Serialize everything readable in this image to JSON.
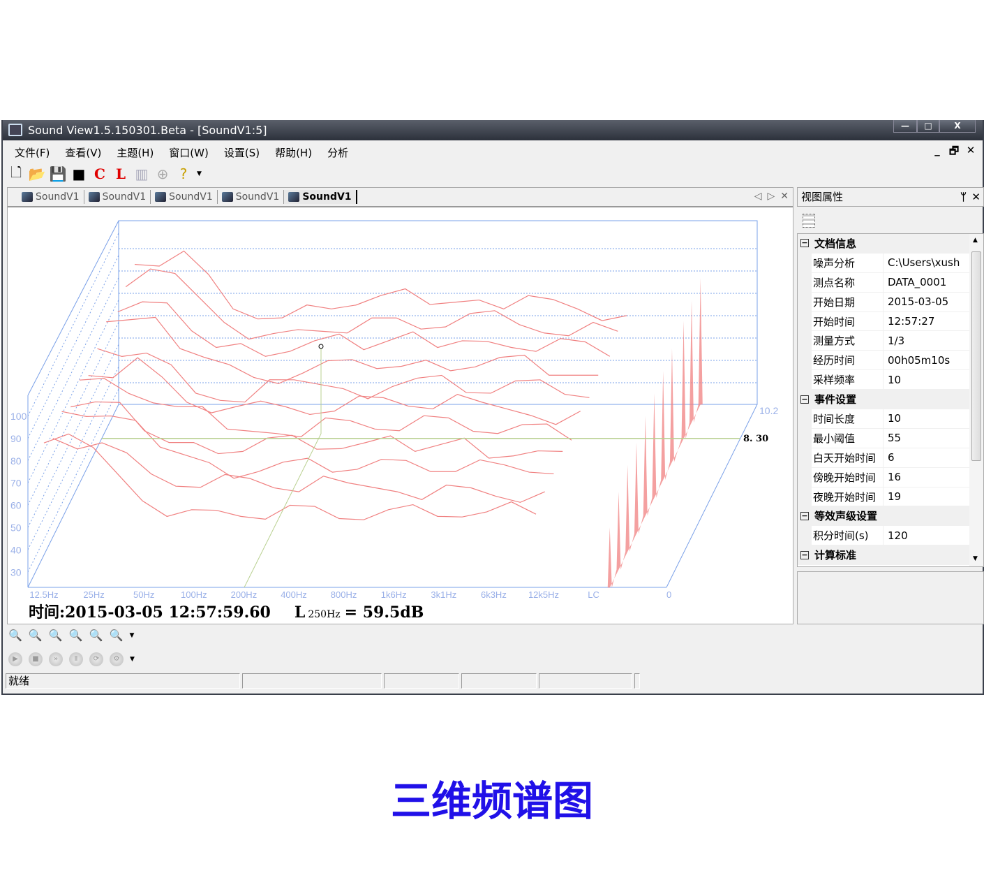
{
  "window": {
    "title": "Sound View1.5.150301.Beta - [SoundV1:5]",
    "min": "—",
    "max": "□",
    "close": "X"
  },
  "menu": [
    "文件(F)",
    "查看(V)",
    "主题(H)",
    "窗口(W)",
    "设置(S)",
    "帮助(H)",
    "分析"
  ],
  "mdi_controls": {
    "min": "_",
    "restore": "🗗",
    "close": "✕"
  },
  "toolbar": [
    {
      "icon": "new-file-icon",
      "glyph": "🗋"
    },
    {
      "icon": "open-folder-icon",
      "glyph": "📂"
    },
    {
      "icon": "save-icon",
      "glyph": "💾"
    },
    {
      "icon": "black-square-icon",
      "glyph": "■"
    },
    {
      "icon": "c-weighting-icon",
      "glyph": "C"
    },
    {
      "icon": "l-weighting-icon",
      "glyph": "L"
    },
    {
      "icon": "chart-icon",
      "glyph": "▥"
    },
    {
      "icon": "add-circle-icon",
      "glyph": "⊕"
    },
    {
      "icon": "help-icon",
      "glyph": "?"
    }
  ],
  "tabs": [
    "SoundV1",
    "SoundV1",
    "SoundV1",
    "SoundV1",
    "SoundV1"
  ],
  "active_tab": 4,
  "tab_nav": {
    "prev": "◁",
    "next": "▷",
    "close": "✕"
  },
  "properties": {
    "title": "视图属性",
    "pin": "ᛘ",
    "close": "✕",
    "sections": [
      {
        "name": "文档信息",
        "rows": [
          [
            "噪声分析",
            "C:\\Users\\xush"
          ],
          [
            "测点名称",
            "DATA_0001"
          ],
          [
            "开始日期",
            "2015-03-05"
          ],
          [
            "开始时间",
            "12:57:27"
          ],
          [
            "测量方式",
            "1/3"
          ],
          [
            "经历时间",
            "00h05m10s"
          ],
          [
            "采样频率",
            "10"
          ]
        ]
      },
      {
        "name": "事件设置",
        "rows": [
          [
            "时间长度",
            "10"
          ],
          [
            "最小阈值",
            "55"
          ],
          [
            "白天开始时间",
            "6"
          ],
          [
            "傍晚开始时间",
            "16"
          ],
          [
            "夜晚开始时间",
            "19"
          ]
        ]
      },
      {
        "name": "等效声级设置",
        "rows": [
          [
            "积分时间(s)",
            "120"
          ]
        ]
      },
      {
        "name": "计算标准",
        "rows": []
      }
    ]
  },
  "readout": {
    "time": "时间:2015-03-05 12:57:59.60",
    "level_prefix": "L",
    "level_sub": "250Hz",
    "level_value": "= 59.5dB"
  },
  "status": {
    "text": "就绪"
  },
  "caption": "三维频谱图",
  "chart_data": {
    "type": "3d-waterfall",
    "x_tick_labels": [
      "12.5Hz",
      "25Hz",
      "50Hz",
      "100Hz",
      "200Hz",
      "400Hz",
      "800Hz",
      "1k6Hz",
      "3k1Hz",
      "6k3Hz",
      "12k5Hz",
      "LC"
    ],
    "y_tick_labels": [
      "100",
      "90",
      "80",
      "70",
      "60",
      "50",
      "40",
      "30"
    ],
    "ylim": [
      23,
      106
    ],
    "z_tick_labels": [
      "0",
      "10.2"
    ],
    "zlim": [
      0,
      10.2
    ],
    "cursor_time": "8. 30",
    "cursor_band": "250Hz",
    "line_color": "#f08080",
    "axis_color": "#7aa0e8",
    "cursor_color": "#b8d090",
    "slices": [
      {
        "t": 0.0,
        "values": [
          88,
          86,
          62,
          58,
          55,
          60,
          54,
          58,
          55,
          57,
          56,
          50
        ]
      },
      {
        "t": 1.0,
        "values": [
          82,
          80,
          66,
          60,
          64,
          58,
          62,
          58,
          61,
          56,
          58,
          58
        ]
      },
      {
        "t": 2.0,
        "values": [
          86,
          84,
          70,
          63,
          59,
          65,
          60,
          64,
          59,
          62,
          58,
          62
        ]
      },
      {
        "t": 3.0,
        "values": [
          80,
          82,
          64,
          59,
          66,
          61,
          64,
          60,
          66,
          58,
          60,
          64
        ]
      },
      {
        "t": 4.0,
        "values": [
          84,
          78,
          72,
          62,
          60,
          67,
          62,
          68,
          61,
          64,
          57,
          68
        ]
      },
      {
        "t": 5.0,
        "values": [
          78,
          86,
          66,
          64,
          64,
          62,
          68,
          63,
          66,
          60,
          62,
          70
        ]
      },
      {
        "t": 6.0,
        "values": [
          82,
          80,
          62,
          58,
          68,
          64,
          65,
          70,
          62,
          68,
          60,
          72
        ]
      },
      {
        "t": 7.0,
        "values": [
          86,
          88,
          70,
          61,
          63,
          69,
          66,
          64,
          70,
          62,
          62,
          74
        ]
      },
      {
        "t": 8.3,
        "values": [
          80,
          84,
          64,
          60,
          67,
          63,
          71,
          67,
          64,
          68,
          60,
          76
        ]
      },
      {
        "t": 9.2,
        "values": [
          84,
          90,
          68,
          63,
          64,
          70,
          65,
          72,
          67,
          62,
          64,
          78
        ]
      },
      {
        "t": 10.2,
        "values": [
          86,
          92,
          66,
          62,
          66,
          72,
          68,
          70,
          72,
          66,
          63,
          80
        ]
      }
    ]
  }
}
